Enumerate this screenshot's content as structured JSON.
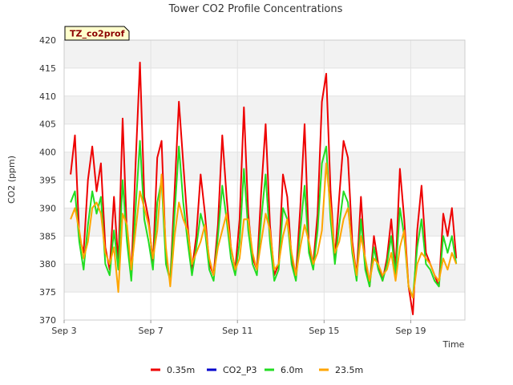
{
  "chart_data": {
    "type": "line",
    "title": "Tower CO2 Profile Concentrations",
    "site_tag": "TZ_co2prof",
    "xlabel": "Time",
    "ylabel": "CO2 (ppm)",
    "xlim": [
      3,
      21.5
    ],
    "ylim": [
      370,
      420
    ],
    "x_ticks": [
      3,
      7,
      11,
      15,
      19
    ],
    "x_tick_labels": [
      "Sep 3",
      "Sep 7",
      "Sep 11",
      "Sep 15",
      "Sep 19"
    ],
    "y_ticks": [
      370,
      375,
      380,
      385,
      390,
      395,
      400,
      405,
      410,
      415,
      420
    ],
    "grid": true,
    "legend_position": "bottom",
    "series": [
      {
        "name": "0.35m",
        "color": "#ee0000",
        "x": [
          3.3,
          3.5,
          3.7,
          3.9,
          4.1,
          4.3,
          4.5,
          4.7,
          4.9,
          5.1,
          5.3,
          5.5,
          5.7,
          5.9,
          6.1,
          6.3,
          6.5,
          6.7,
          6.9,
          7.1,
          7.3,
          7.5,
          7.7,
          7.9,
          8.1,
          8.3,
          8.5,
          8.7,
          8.9,
          9.1,
          9.3,
          9.5,
          9.7,
          9.9,
          10.1,
          10.3,
          10.5,
          10.7,
          10.9,
          11.1,
          11.3,
          11.5,
          11.7,
          11.9,
          12.1,
          12.3,
          12.5,
          12.7,
          12.9,
          13.1,
          13.3,
          13.5,
          13.7,
          13.9,
          14.1,
          14.3,
          14.5,
          14.7,
          14.9,
          15.1,
          15.3,
          15.5,
          15.7,
          15.9,
          16.1,
          16.3,
          16.5,
          16.7,
          16.9,
          17.1,
          17.3,
          17.5,
          17.7,
          17.9,
          18.1,
          18.3,
          18.5,
          18.7,
          18.9,
          19.1,
          19.3,
          19.5,
          19.7,
          19.9,
          20.1,
          20.3,
          20.5,
          20.7,
          20.9,
          21.1
        ],
        "values": [
          396,
          403,
          385,
          382,
          395,
          401,
          393,
          398,
          383,
          379,
          392,
          380,
          406,
          385,
          378,
          398,
          416,
          392,
          388,
          380,
          399,
          402,
          381,
          377,
          393,
          409,
          398,
          387,
          379,
          385,
          396,
          389,
          380,
          378,
          387,
          403,
          392,
          383,
          379,
          388,
          408,
          389,
          381,
          379,
          393,
          405,
          387,
          378,
          380,
          396,
          392,
          381,
          378,
          390,
          405,
          383,
          380,
          389,
          409,
          414,
          393,
          381,
          392,
          402,
          399,
          384,
          378,
          392,
          380,
          376,
          385,
          380,
          377,
          381,
          388,
          379,
          397,
          388,
          376,
          371,
          386,
          394,
          382,
          380,
          378,
          376,
          389,
          385,
          390,
          381
        ]
      },
      {
        "name": "CO2_P3",
        "color": "#0000cc",
        "x": [],
        "values": []
      },
      {
        "name": "6.0m",
        "color": "#22dd22",
        "x": [
          3.3,
          3.5,
          3.7,
          3.9,
          4.1,
          4.3,
          4.5,
          4.7,
          4.9,
          5.1,
          5.3,
          5.5,
          5.7,
          5.9,
          6.1,
          6.3,
          6.5,
          6.7,
          6.9,
          7.1,
          7.3,
          7.5,
          7.7,
          7.9,
          8.1,
          8.3,
          8.5,
          8.7,
          8.9,
          9.1,
          9.3,
          9.5,
          9.7,
          9.9,
          10.1,
          10.3,
          10.5,
          10.7,
          10.9,
          11.1,
          11.3,
          11.5,
          11.7,
          11.9,
          12.1,
          12.3,
          12.5,
          12.7,
          12.9,
          13.1,
          13.3,
          13.5,
          13.7,
          13.9,
          14.1,
          14.3,
          14.5,
          14.7,
          14.9,
          15.1,
          15.3,
          15.5,
          15.7,
          15.9,
          16.1,
          16.3,
          16.5,
          16.7,
          16.9,
          17.1,
          17.3,
          17.5,
          17.7,
          17.9,
          18.1,
          18.3,
          18.5,
          18.7,
          18.9,
          19.1,
          19.3,
          19.5,
          19.7,
          19.9,
          20.1,
          20.3,
          20.5,
          20.7,
          20.9,
          21.1
        ],
        "values": [
          391,
          393,
          384,
          379,
          387,
          393,
          389,
          392,
          380,
          378,
          386,
          379,
          395,
          384,
          377,
          390,
          402,
          388,
          384,
          379,
          391,
          395,
          380,
          377,
          389,
          401,
          391,
          384,
          378,
          383,
          389,
          386,
          379,
          377,
          385,
          394,
          388,
          381,
          378,
          384,
          397,
          386,
          380,
          378,
          388,
          396,
          384,
          377,
          379,
          390,
          388,
          380,
          377,
          386,
          394,
          382,
          379,
          386,
          398,
          401,
          388,
          380,
          387,
          393,
          391,
          382,
          377,
          388,
          379,
          376,
          383,
          379,
          377,
          380,
          385,
          378,
          390,
          385,
          376,
          374,
          383,
          388,
          380,
          379,
          377,
          376,
          385,
          382,
          385,
          380
        ]
      },
      {
        "name": "23.5m",
        "color": "#ffa500",
        "x": [
          3.3,
          3.5,
          3.7,
          3.9,
          4.1,
          4.3,
          4.5,
          4.7,
          4.9,
          5.1,
          5.3,
          5.5,
          5.7,
          5.9,
          6.1,
          6.3,
          6.5,
          6.7,
          6.9,
          7.1,
          7.3,
          7.5,
          7.7,
          7.9,
          8.1,
          8.3,
          8.5,
          8.7,
          8.9,
          9.1,
          9.3,
          9.5,
          9.7,
          9.9,
          10.1,
          10.3,
          10.5,
          10.7,
          10.9,
          11.1,
          11.3,
          11.5,
          11.7,
          11.9,
          12.1,
          12.3,
          12.5,
          12.7,
          12.9,
          13.1,
          13.3,
          13.5,
          13.7,
          13.9,
          14.1,
          14.3,
          14.5,
          14.7,
          14.9,
          15.1,
          15.3,
          15.5,
          15.7,
          15.9,
          16.1,
          16.3,
          16.5,
          16.7,
          16.9,
          17.1,
          17.3,
          17.5,
          17.7,
          17.9,
          18.1,
          18.3,
          18.5,
          18.7,
          18.9,
          19.1,
          19.3,
          19.5,
          19.7,
          19.9,
          20.1,
          20.3,
          20.5,
          20.7,
          20.9,
          21.1
        ],
        "values": [
          388,
          390,
          386,
          381,
          384,
          390,
          391,
          389,
          382,
          380,
          383,
          375,
          389,
          387,
          379,
          386,
          393,
          390,
          387,
          381,
          386,
          396,
          383,
          376,
          385,
          391,
          388,
          386,
          380,
          382,
          384,
          387,
          381,
          378,
          383,
          386,
          389,
          383,
          379,
          381,
          388,
          388,
          382,
          379,
          384,
          389,
          386,
          379,
          380,
          385,
          388,
          382,
          378,
          383,
          387,
          384,
          380,
          382,
          386,
          398,
          390,
          382,
          384,
          388,
          390,
          383,
          378,
          385,
          381,
          377,
          381,
          380,
          378,
          379,
          382,
          377,
          383,
          386,
          376,
          374,
          380,
          382,
          381,
          380,
          378,
          377,
          381,
          379,
          382,
          380
        ]
      }
    ]
  }
}
